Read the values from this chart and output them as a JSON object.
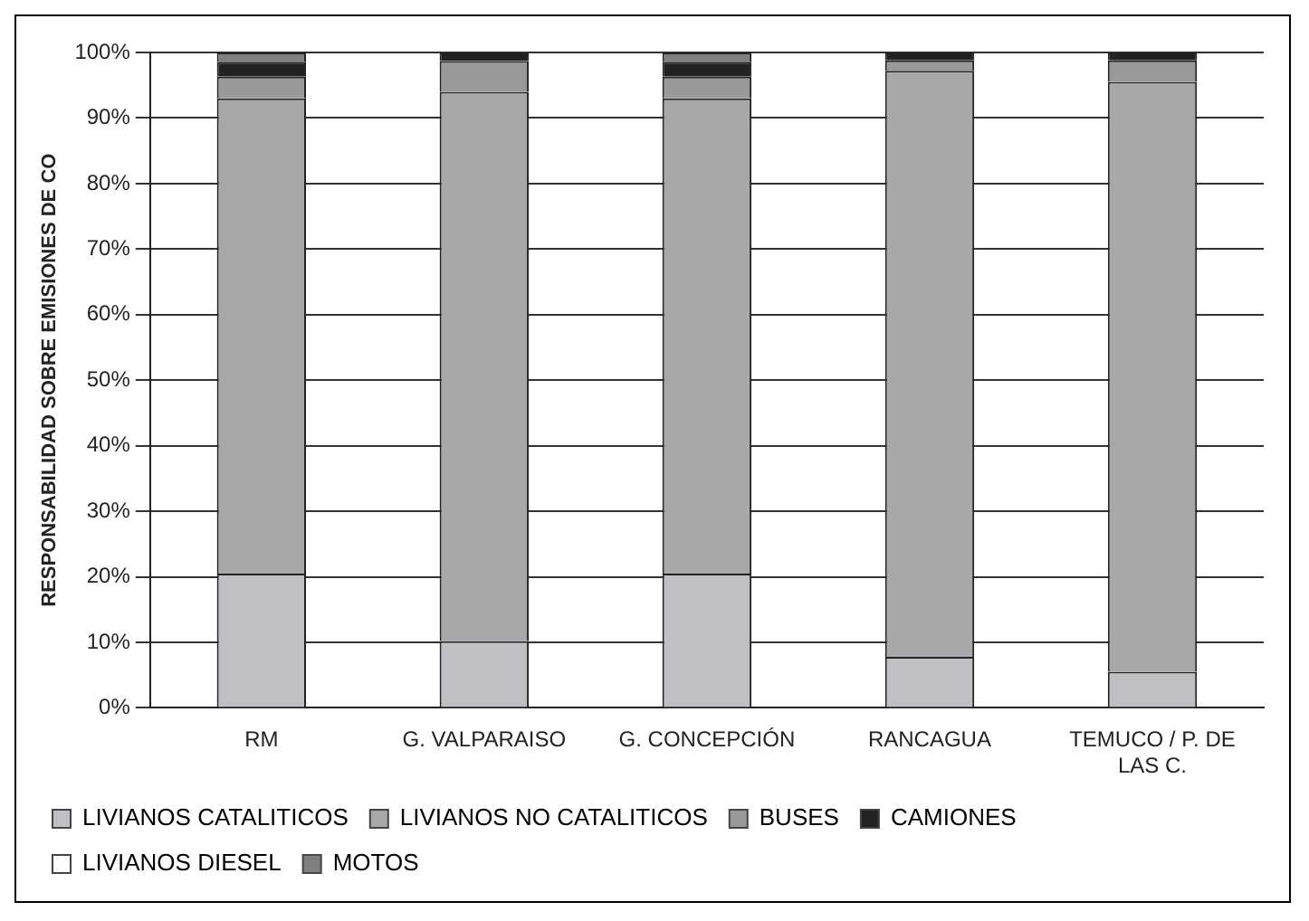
{
  "chart_data": {
    "type": "bar",
    "stacked": true,
    "ylabel": "RESPONSABILIDAD SOBRE EMISIONES DE CO",
    "categories": [
      "RM",
      "G. VALPARAISO",
      "G. CONCEPCIÓN",
      "RANCAGUA",
      "TEMUCO / P. DE LAS C."
    ],
    "series": [
      {
        "name": "LIVIANOS CATALITICOS",
        "color": "#c0c0c4",
        "values": [
          20.5,
          10.2,
          20.5,
          7.8,
          5.5
        ]
      },
      {
        "name": "LIVIANOS NO CATALITICOS",
        "color": "#a8a8a8",
        "values": [
          72.5,
          83.8,
          72.5,
          89.4,
          90
        ]
      },
      {
        "name": "BUSES",
        "color": "#999999",
        "values": [
          3.3,
          4.7,
          3.3,
          1.6,
          3.3
        ]
      },
      {
        "name": "CAMIONES",
        "color": "#222222",
        "values": [
          2.3,
          1.3,
          2.3,
          1.2,
          1.2
        ]
      },
      {
        "name": "LIVIANOS DIESEL",
        "color": "#ffffff",
        "values": [
          0,
          0,
          0,
          0,
          0
        ]
      },
      {
        "name": "MOTOS",
        "color": "#808080",
        "values": [
          1.4,
          0,
          1.4,
          0,
          0
        ]
      }
    ],
    "ylim": [
      0,
      100
    ],
    "yticks": [
      {
        "value": 0,
        "label": "0%"
      },
      {
        "value": 10,
        "label": "10%"
      },
      {
        "value": 20,
        "label": "20%"
      },
      {
        "value": 30,
        "label": "30%"
      },
      {
        "value": 40,
        "label": "40%"
      },
      {
        "value": 50,
        "label": "50%"
      },
      {
        "value": 60,
        "label": "60%"
      },
      {
        "value": 70,
        "label": "70%"
      },
      {
        "value": 80,
        "label": "80%"
      },
      {
        "value": 90,
        "label": "90%"
      },
      {
        "value": 100,
        "label": "100%"
      }
    ],
    "grid": "y",
    "legend": "bottom"
  }
}
